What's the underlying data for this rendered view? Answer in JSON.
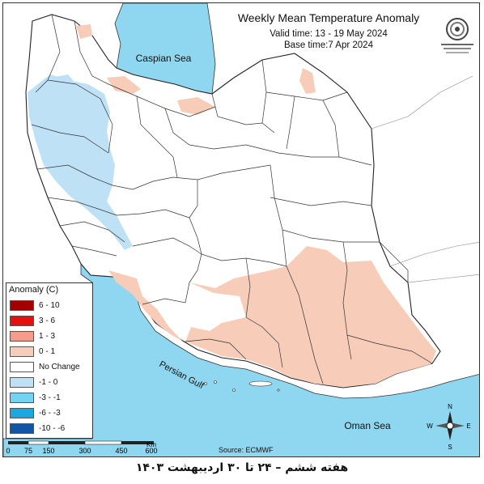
{
  "header": {
    "title": "Weekly Mean Temperature Anomaly",
    "valid_time": "Valid time: 13 - 19 May 2024",
    "base_time": "Base time:7 Apr 2024"
  },
  "map_labels": {
    "caspian": "Caspian Sea",
    "persian_gulf": "Persian Gulf",
    "oman_sea": "Oman Sea",
    "source": "Source: ECMWF"
  },
  "legend": {
    "title": "Anomaly (C)",
    "items": [
      {
        "label": "6 - 10",
        "color": "#a50000"
      },
      {
        "label": "3 - 6",
        "color": "#e8100e"
      },
      {
        "label": "1 - 3",
        "color": "#f59c8c"
      },
      {
        "label": "0 - 1",
        "color": "#f7cdb9"
      },
      {
        "label": "No Change",
        "color": "#ffffff"
      },
      {
        "label": "-1 - 0",
        "color": "#bfe1f6"
      },
      {
        "label": "-3 - -1",
        "color": "#74d2f2"
      },
      {
        "label": "-6 - -3",
        "color": "#1aa8e0"
      },
      {
        "label": "-10 - -6",
        "color": "#1156a5"
      }
    ]
  },
  "scale_bar": {
    "ticks": [
      "0",
      "75",
      "150",
      "300",
      "450",
      "600"
    ],
    "unit": "Km"
  },
  "compass": {
    "n": "N",
    "s": "S",
    "e": "E",
    "w": "W"
  },
  "colors": {
    "water": "#8fd6f0",
    "warm": "#f7cdb9",
    "cool": "#bfe1f6"
  },
  "footer": "هفته ششم – ۲۴ تا ۳۰ اردیبهشت ۱۴۰۳"
}
